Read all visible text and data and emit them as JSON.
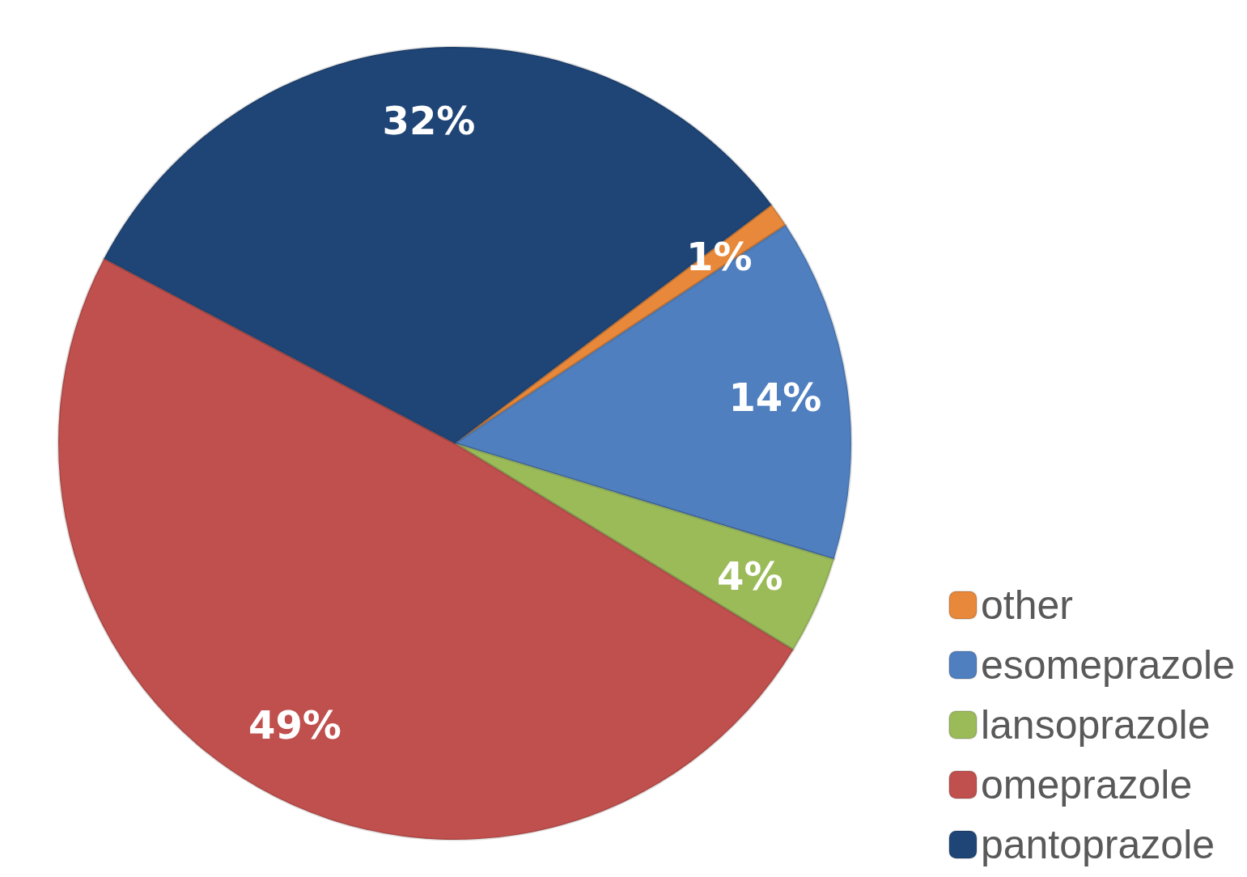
{
  "chart_data": {
    "type": "pie",
    "categories": [
      "other",
      "esomeprazole",
      "lansoprazole",
      "omeprazole",
      "pantoprazole"
    ],
    "values": [
      1,
      14,
      4,
      49,
      32
    ],
    "value_labels": [
      "1%",
      "14%",
      "4%",
      "49%",
      "32%"
    ],
    "colors": [
      "#e8883a",
      "#4f7fbf",
      "#9bbb59",
      "#c0504d",
      "#1f4577"
    ],
    "legend": "bottom right"
  }
}
